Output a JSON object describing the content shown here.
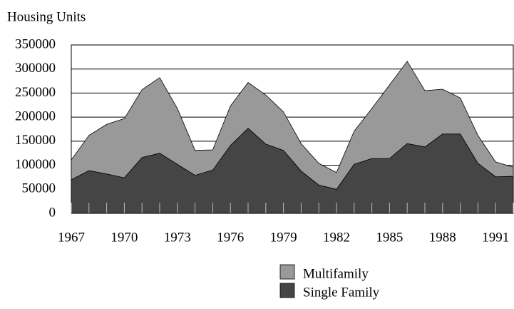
{
  "chart_data": {
    "type": "area",
    "stacked": true,
    "y_label": "Housing Units",
    "x": [
      1967,
      1968,
      1969,
      1970,
      1971,
      1972,
      1973,
      1974,
      1975,
      1976,
      1977,
      1978,
      1979,
      1980,
      1981,
      1982,
      1983,
      1984,
      1985,
      1986,
      1987,
      1988,
      1989,
      1990,
      1991,
      1992
    ],
    "series": [
      {
        "name": "Multifamily",
        "color": "#999999",
        "values": [
          41,
          73,
          103,
          123,
          141,
          157,
          116,
          52,
          42,
          82,
          95,
          102,
          80,
          57,
          45,
          35,
          69,
          104,
          153,
          171,
          117,
          93,
          75,
          58,
          31,
          19
        ]
      },
      {
        "name": "Single Family",
        "color": "#454545",
        "values": [
          70,
          89,
          82,
          74,
          116,
          125,
          102,
          79,
          90,
          141,
          177,
          144,
          131,
          88,
          59,
          50,
          102,
          114,
          114,
          145,
          138,
          165,
          165,
          104,
          76,
          77
        ]
      }
    ],
    "value_scale": 1000,
    "xlim": [
      1967,
      1992
    ],
    "xticks": [
      1967,
      1970,
      1973,
      1976,
      1979,
      1982,
      1985,
      1988,
      1991
    ],
    "ylim": [
      0,
      350000
    ],
    "yticks": [
      0,
      50000,
      100000,
      150000,
      200000,
      250000,
      300000,
      350000
    ],
    "grid": true,
    "legend": "bottom"
  }
}
